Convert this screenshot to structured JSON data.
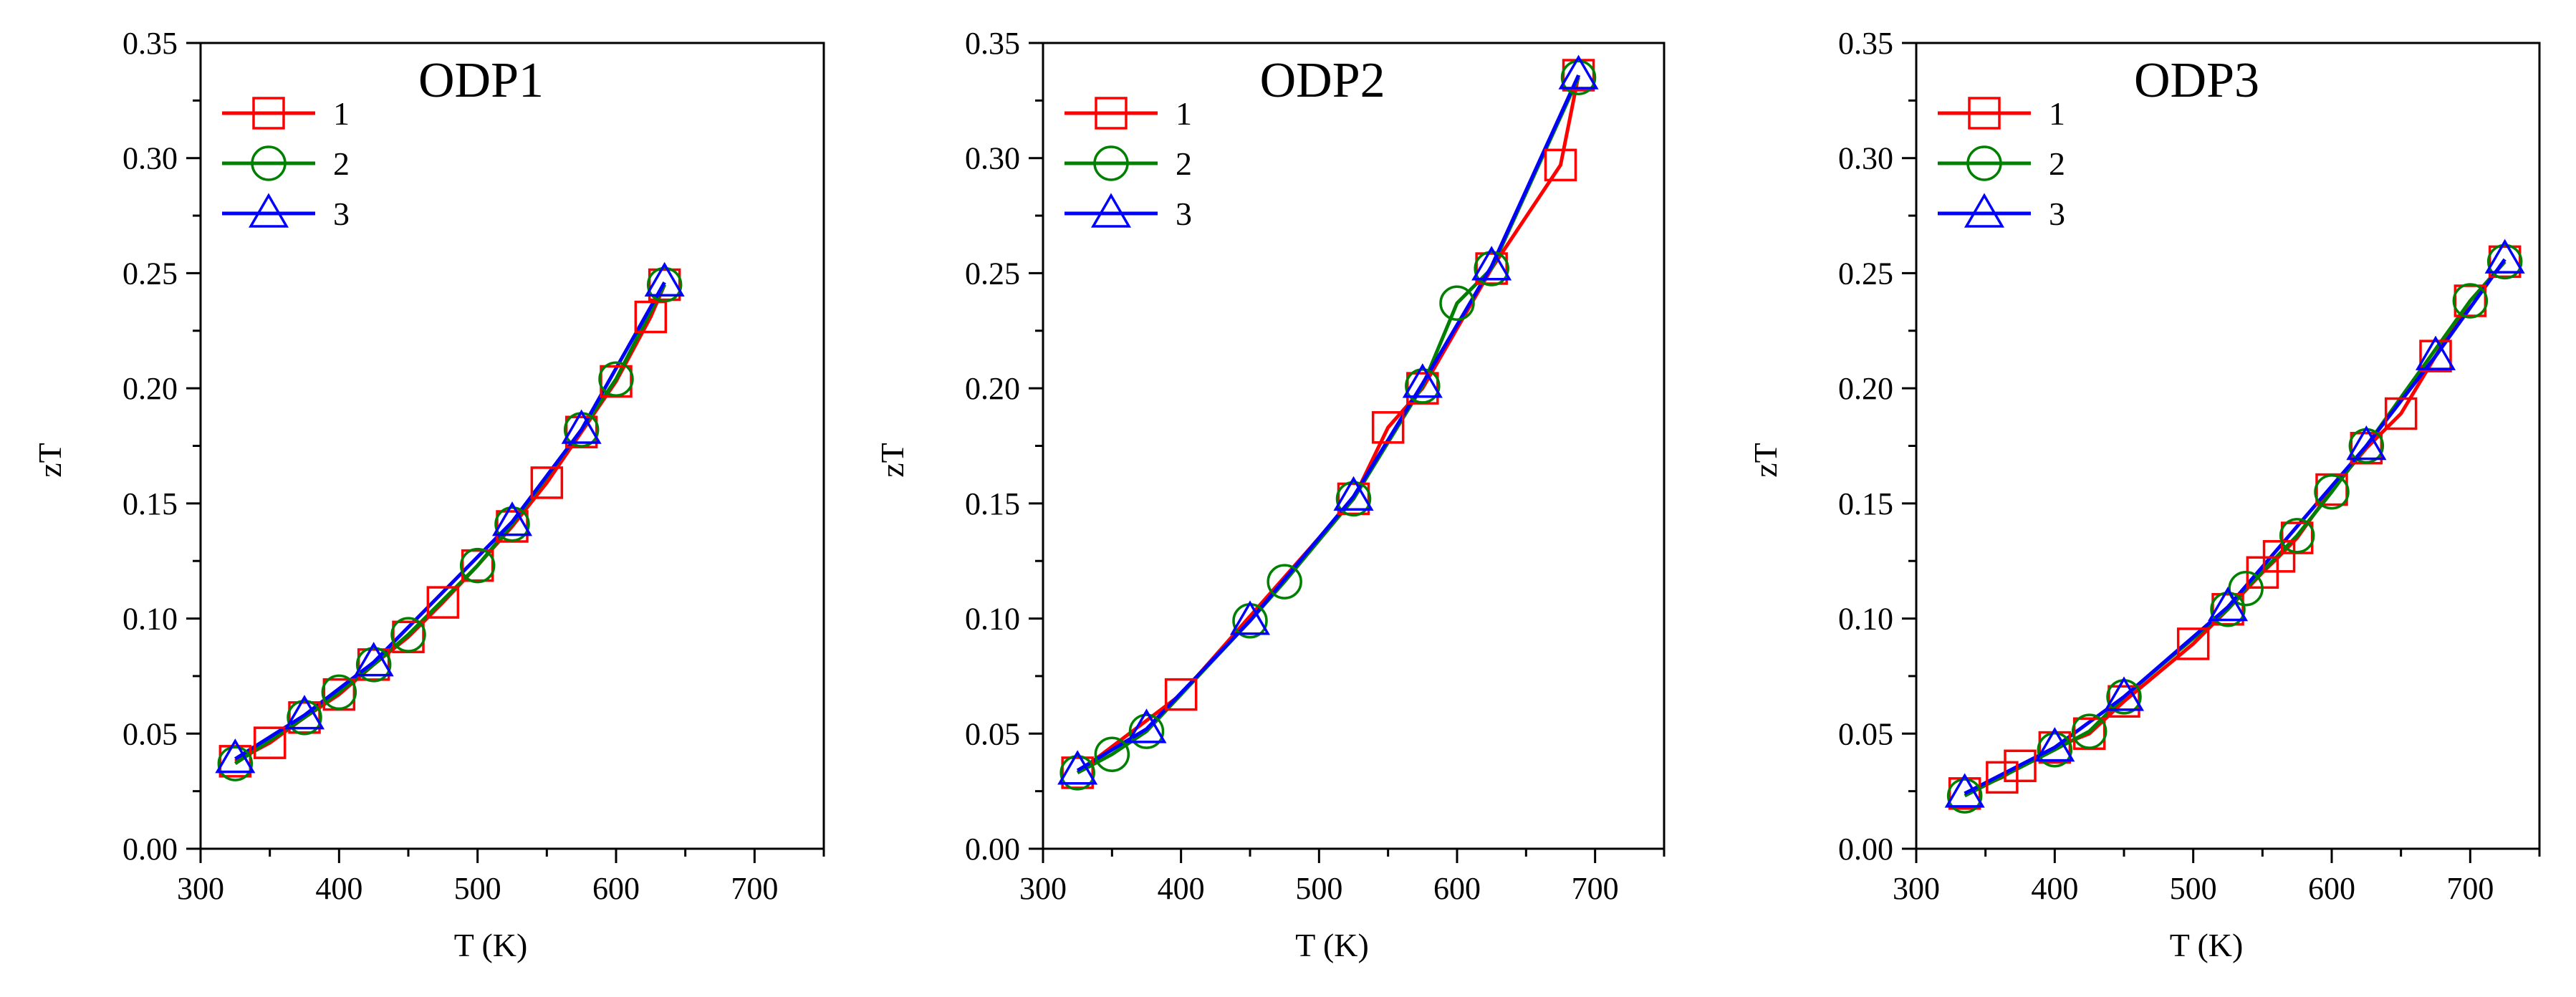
{
  "figure": {
    "colors": {
      "series1": "#ff0000",
      "series2": "#008000",
      "series3": "#0000ff",
      "axis": "#000000"
    }
  },
  "chart_data": [
    {
      "type": "line",
      "title": "ODP1",
      "xlabel": "T (K)",
      "ylabel": "zT",
      "xlim": [
        300,
        750
      ],
      "ylim": [
        0,
        0.35
      ],
      "xticks": [
        300,
        400,
        500,
        600,
        700
      ],
      "xtick_labels": [
        "300",
        "400",
        "500",
        "600",
        "700"
      ],
      "yticks": [
        0,
        0.05,
        0.1,
        0.15,
        0.2,
        0.25,
        0.3,
        0.35
      ],
      "ytick_labels": [
        "0.00",
        "0.05",
        "0.10",
        "0.15",
        "0.20",
        "0.25",
        "0.30",
        "0.35"
      ],
      "legend": "top-left",
      "series": [
        {
          "name": "1",
          "marker": "square",
          "color": "#ff0000",
          "x": [
            325,
            350,
            375,
            400,
            425,
            450,
            475,
            500,
            525,
            550,
            575,
            600,
            625,
            635
          ],
          "y": [
            0.038,
            0.046,
            0.057,
            0.067,
            0.08,
            0.092,
            0.107,
            0.123,
            0.14,
            0.159,
            0.181,
            0.203,
            0.231,
            0.245
          ]
        },
        {
          "name": "2",
          "marker": "circle",
          "color": "#008000",
          "x": [
            325,
            375,
            400,
            425,
            450,
            500,
            525,
            575,
            600,
            635
          ],
          "y": [
            0.037,
            0.057,
            0.068,
            0.08,
            0.093,
            0.123,
            0.141,
            0.182,
            0.204,
            0.245
          ]
        },
        {
          "name": "3",
          "marker": "triangle",
          "color": "#0000ff",
          "x": [
            325,
            375,
            425,
            525,
            575,
            635
          ],
          "y": [
            0.039,
            0.058,
            0.081,
            0.142,
            0.182,
            0.246
          ]
        }
      ]
    },
    {
      "type": "line",
      "title": "ODP2",
      "xlabel": "T (K)",
      "ylabel": "zT",
      "xlim": [
        300,
        750
      ],
      "ylim": [
        0,
        0.35
      ],
      "xticks": [
        300,
        400,
        500,
        600,
        700
      ],
      "xtick_labels": [
        "300",
        "400",
        "500",
        "600",
        "700"
      ],
      "yticks": [
        0,
        0.05,
        0.1,
        0.15,
        0.2,
        0.25,
        0.3,
        0.35
      ],
      "ytick_labels": [
        "0.00",
        "0.05",
        "0.10",
        "0.15",
        "0.20",
        "0.25",
        "0.30",
        "0.35"
      ],
      "legend": "top-left",
      "series": [
        {
          "name": "1",
          "marker": "square",
          "color": "#ff0000",
          "x": [
            325,
            400,
            525,
            550,
            575,
            625,
            675,
            688
          ],
          "y": [
            0.033,
            0.067,
            0.152,
            0.183,
            0.2,
            0.252,
            0.297,
            0.336
          ]
        },
        {
          "name": "2",
          "marker": "circle",
          "color": "#008000",
          "x": [
            325,
            350,
            375,
            450,
            475,
            525,
            575,
            600,
            625,
            688
          ],
          "y": [
            0.033,
            0.041,
            0.051,
            0.099,
            0.116,
            0.152,
            0.201,
            0.237,
            0.252,
            0.335
          ]
        },
        {
          "name": "3",
          "marker": "triangle",
          "color": "#0000ff",
          "x": [
            325,
            375,
            450,
            525,
            575,
            625,
            688
          ],
          "y": [
            0.034,
            0.052,
            0.099,
            0.153,
            0.202,
            0.253,
            0.336
          ]
        }
      ]
    },
    {
      "type": "line",
      "title": "ODP3",
      "xlabel": "T (K)",
      "ylabel": "zT",
      "xlim": [
        300,
        750
      ],
      "ylim": [
        0,
        0.35
      ],
      "xticks": [
        300,
        400,
        500,
        600,
        700
      ],
      "xtick_labels": [
        "300",
        "400",
        "500",
        "600",
        "700"
      ],
      "yticks": [
        0,
        0.05,
        0.1,
        0.15,
        0.2,
        0.25,
        0.3,
        0.35
      ],
      "ytick_labels": [
        "0.00",
        "0.05",
        "0.10",
        "0.15",
        "0.20",
        "0.25",
        "0.30",
        "0.35"
      ],
      "legend": "top-left",
      "series": [
        {
          "name": "1",
          "marker": "square",
          "color": "#ff0000",
          "x": [
            335,
            362,
            375,
            400,
            425,
            450,
            500,
            525,
            550,
            562,
            575,
            600,
            625,
            650,
            675,
            700,
            725
          ],
          "y": [
            0.024,
            0.031,
            0.036,
            0.044,
            0.05,
            0.064,
            0.089,
            0.104,
            0.12,
            0.127,
            0.135,
            0.156,
            0.174,
            0.189,
            0.214,
            0.238,
            0.255
          ]
        },
        {
          "name": "2",
          "marker": "circle",
          "color": "#008000",
          "x": [
            335,
            400,
            425,
            450,
            525,
            538,
            575,
            600,
            625,
            700,
            725
          ],
          "y": [
            0.023,
            0.043,
            0.051,
            0.066,
            0.104,
            0.113,
            0.136,
            0.155,
            0.175,
            0.238,
            0.255
          ]
        },
        {
          "name": "3",
          "marker": "triangle",
          "color": "#0000ff",
          "x": [
            335,
            400,
            450,
            525,
            625,
            675,
            725
          ],
          "y": [
            0.024,
            0.044,
            0.066,
            0.105,
            0.175,
            0.214,
            0.256
          ]
        }
      ]
    }
  ]
}
